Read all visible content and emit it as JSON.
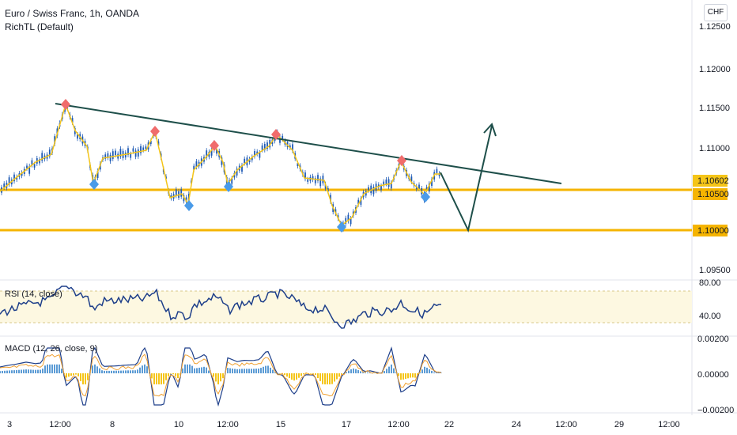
{
  "header": {
    "symbol_line": "Euro / Swiss Franc, 1h, OANDA",
    "indicator_line": "RichTL (Default)"
  },
  "currency_button": "CHF",
  "colors": {
    "price_line": "#f5c518",
    "candle": "#1f5bb5",
    "trendline": "#1e4f4a",
    "support": "#f5b400",
    "rsi": "#1e3f8a",
    "macd_line": "#1e3f8a",
    "hist_pos": "#5b9bd5",
    "hist_neg": "#f5c518",
    "top_marker": "#f06c6c",
    "bottom_marker": "#4a9be8"
  },
  "price_axis": {
    "ticks": [
      "1.12500",
      "1.12000",
      "1.11500",
      "1.11000",
      "1.10500",
      "1.10000",
      "1.09500"
    ],
    "current_label": "1.10602",
    "support_labels": [
      "1.10500",
      "1.10000"
    ]
  },
  "support_levels": [
    1.105,
    1.1
  ],
  "rsi": {
    "label": "RSI (14, close)",
    "ticks": [
      "80.00",
      "40.00"
    ]
  },
  "macd": {
    "label": "MACD (12, 26, close, 9)",
    "ticks": [
      "0.00200",
      "0.00000",
      "−0.00200"
    ]
  },
  "time_axis": [
    "3",
    "12:00",
    "8",
    "10",
    "12:00",
    "15",
    "17",
    "12:00",
    "22",
    "24",
    "12:00",
    "29",
    "12:00"
  ]
}
